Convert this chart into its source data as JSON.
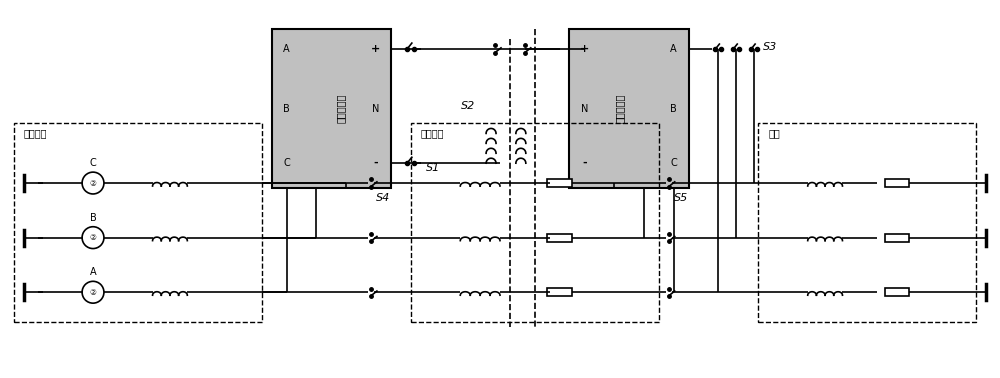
{
  "fig_width": 10.0,
  "fig_height": 3.78,
  "bg_color": "#ffffff",
  "box_color": "#c0c0c0",
  "line_color": "#000000",
  "dashed_color": "#000000",
  "converter_left_label": "送端变流器",
  "converter_right_label": "受端变流器",
  "left_box_label": "配电系统",
  "mid_box_label": "配电线路",
  "right_box_label": "负荷",
  "s1_label": "S1",
  "s2_label": "S2",
  "s3_label": "S3",
  "s4_label": "S4",
  "s5_label": "S5",
  "phase_a": "A",
  "phase_b": "B",
  "phase_c": "C",
  "plus_label": "+",
  "minus_label": "-",
  "neutral_label": "N"
}
